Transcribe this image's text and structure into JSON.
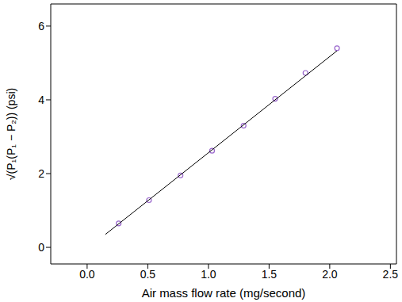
{
  "chart_data": {
    "type": "scatter",
    "x_label": "Air mass flow rate (mg/second)",
    "y_label": "√(P₁(P₁ − P₂)) (psi)",
    "xlim": [
      -0.3,
      2.55
    ],
    "xticks": [
      {
        "value": 0,
        "label": "0.0"
      },
      0.5,
      {
        "value": 1,
        "label": "1.0"
      },
      1.5,
      {
        "value": 2,
        "label": "2.0"
      },
      2.5
    ],
    "ylim": [
      -0.45,
      6.6
    ],
    "yticks": [
      0,
      2,
      4,
      6
    ],
    "grid": false,
    "series": [
      {
        "type": "scatter",
        "marker": "open circle",
        "color": "#9966cc",
        "x": [
          0.26,
          0.51,
          0.77,
          1.03,
          1.29,
          1.55,
          1.8,
          2.06
        ],
        "values": [
          0.65,
          1.28,
          1.95,
          2.62,
          3.3,
          4.03,
          4.73,
          5.4
        ]
      },
      {
        "type": "line",
        "line_style": "solid",
        "color": "#000000",
        "x": [
          0.15,
          2.06
        ],
        "values": [
          0.35,
          5.33
        ]
      }
    ]
  }
}
